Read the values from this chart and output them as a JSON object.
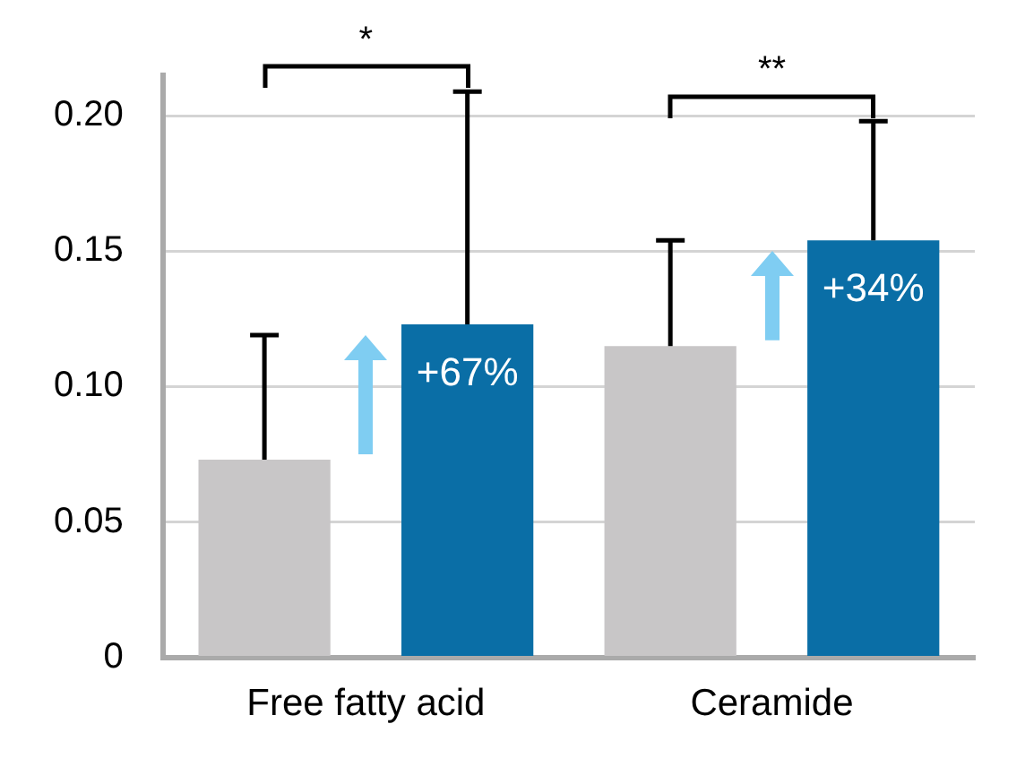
{
  "chart_data": {
    "type": "bar",
    "categories": [
      "Free fatty acid",
      "Ceramide"
    ],
    "series": [
      {
        "color": "#c8c6c7",
        "values": [
          0.073,
          0.115
        ],
        "errors": [
          [
            0.073,
            0.119
          ],
          [
            0.115,
            0.154
          ]
        ]
      },
      {
        "color": "#0a6ea6",
        "values": [
          0.123,
          0.154
        ],
        "errors": [
          [
            0.123,
            0.209
          ],
          [
            0.154,
            0.198
          ]
        ]
      }
    ],
    "ylim": [
      0,
      0.215
    ],
    "yticks": [
      {
        "value": 0,
        "label": "0"
      },
      {
        "value": 0.05,
        "label": "0.05"
      },
      {
        "value": 0.1,
        "label": "0.10"
      },
      {
        "value": 0.15,
        "label": "0.15"
      },
      {
        "value": 0.2,
        "label": "0.20"
      }
    ],
    "grid": "y",
    "legend": false,
    "annotations": [
      "*",
      "**",
      "+67%",
      "+34%"
    ]
  }
}
